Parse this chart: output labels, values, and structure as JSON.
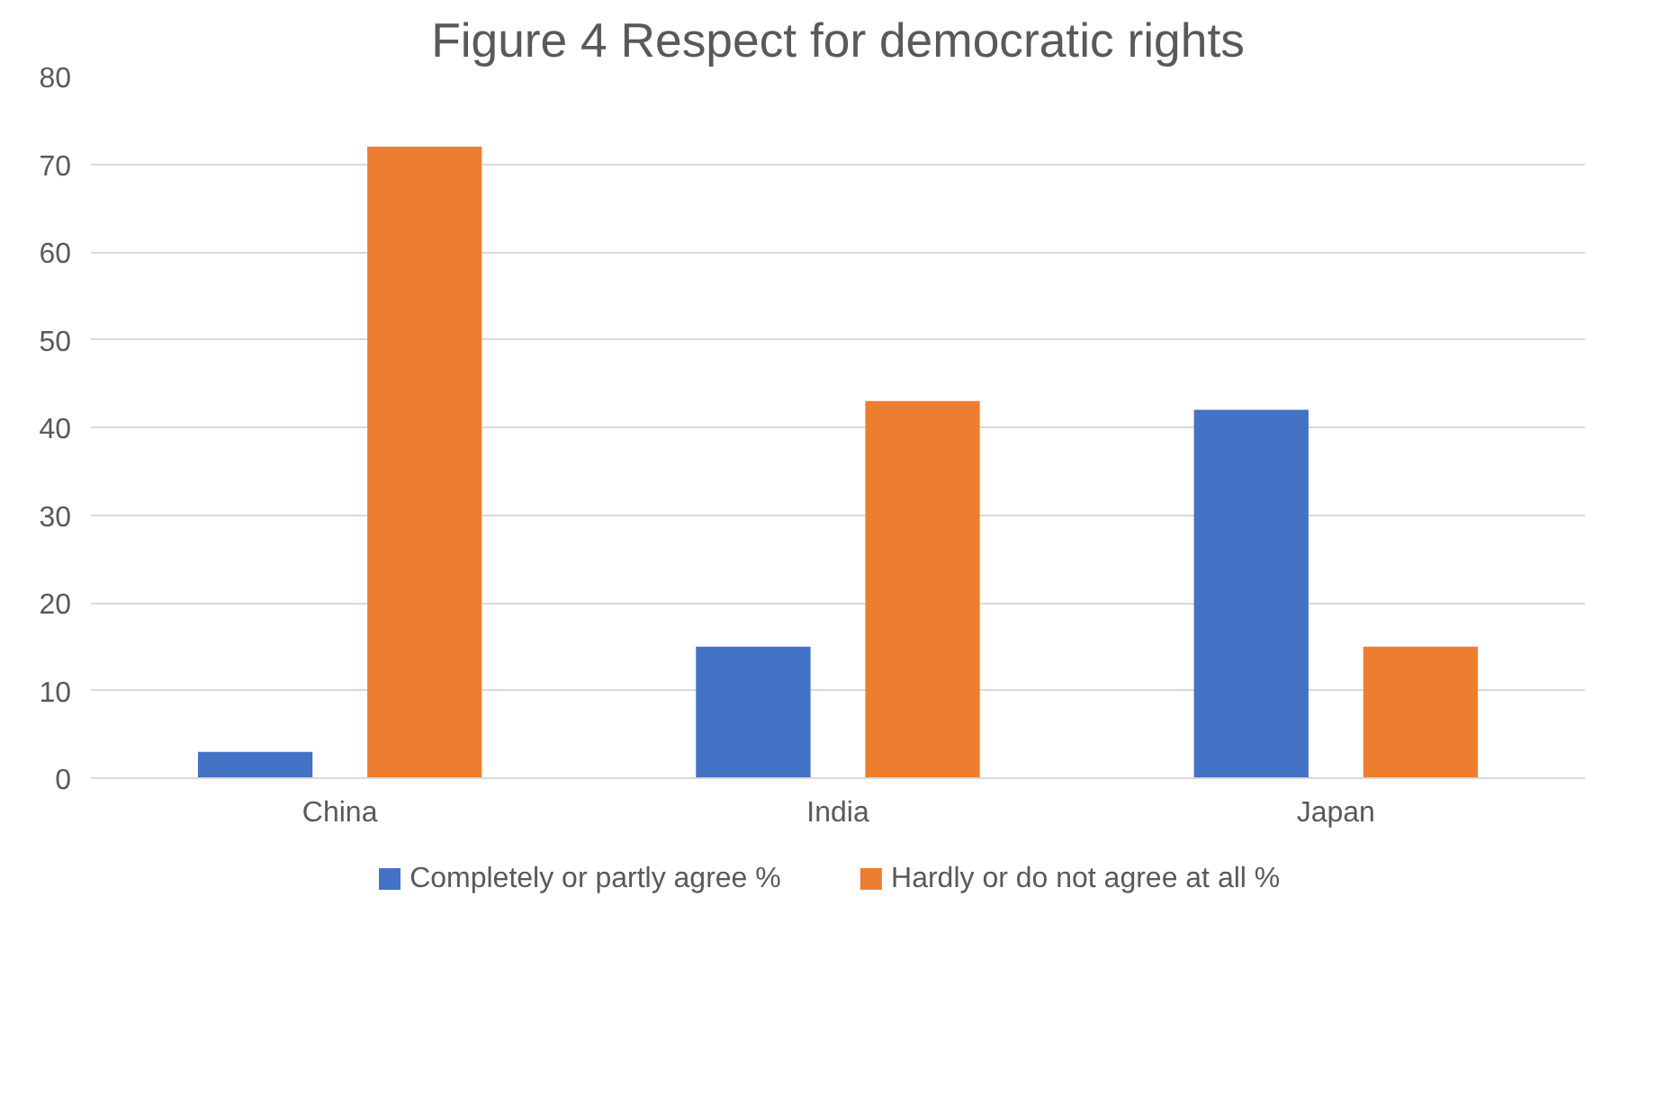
{
  "chart_data": {
    "type": "bar",
    "title": "Figure 4 Respect for democratic rights",
    "categories": [
      "China",
      "India",
      "Japan"
    ],
    "series": [
      {
        "name": "Completely or partly agree %",
        "color": "#4472c4",
        "values": [
          3,
          15,
          42
        ]
      },
      {
        "name": "Hardly or do not agree at all %",
        "color": "#ed7d31",
        "values": [
          72,
          43,
          15
        ]
      }
    ],
    "ylim": [
      0,
      80
    ],
    "yticks": [
      0,
      10,
      20,
      30,
      40,
      50,
      60,
      70,
      80
    ],
    "grid": "y",
    "legend": "bottom"
  }
}
